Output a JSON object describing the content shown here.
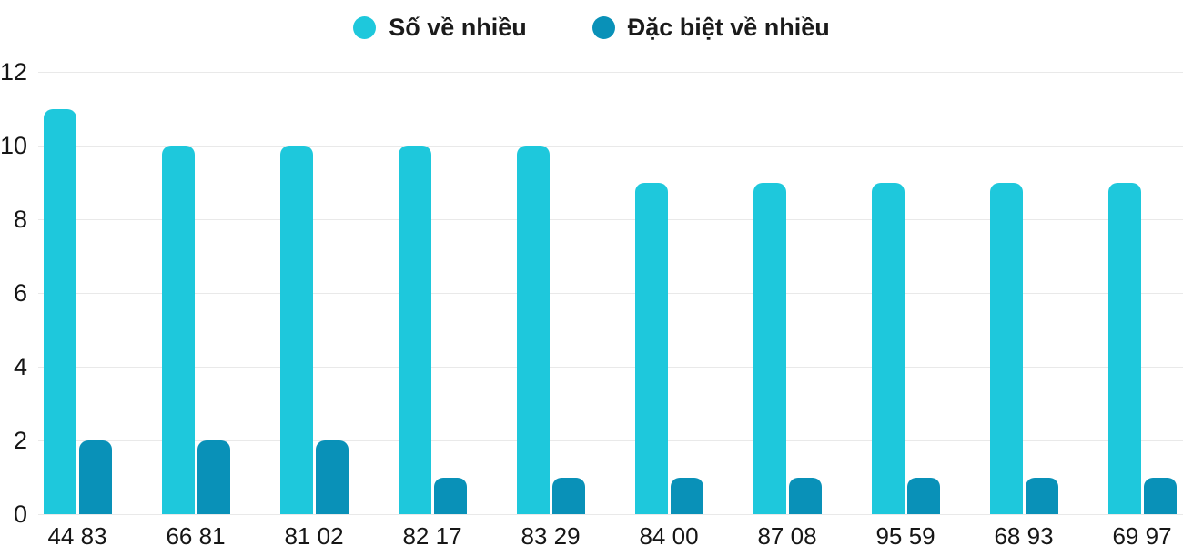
{
  "chart_data": {
    "type": "bar",
    "title": "",
    "xlabel": "",
    "ylabel": "",
    "categories": [
      "44 83",
      "66 81",
      "81 02",
      "82 17",
      "83 29",
      "84 00",
      "87 08",
      "95 59",
      "68 93",
      "69 97"
    ],
    "series": [
      {
        "name": "Số về nhiều",
        "color": "#1EC8DC",
        "values": [
          11,
          10,
          10,
          10,
          10,
          9,
          9,
          9,
          9,
          9
        ]
      },
      {
        "name": "Đặc biệt về nhiều",
        "color": "#0991B8",
        "values": [
          2,
          2,
          2,
          1,
          1,
          1,
          1,
          1,
          1,
          1
        ]
      }
    ],
    "ylim": [
      0,
      12
    ],
    "yticks": [
      0,
      2,
      4,
      6,
      8,
      10,
      12
    ],
    "grid": true,
    "legend_position": "top"
  },
  "colors": {
    "background": "#ffffff",
    "gridline": "#e9e9e9",
    "axis_text": "#161616",
    "legend_text": "#1b1b1b"
  }
}
